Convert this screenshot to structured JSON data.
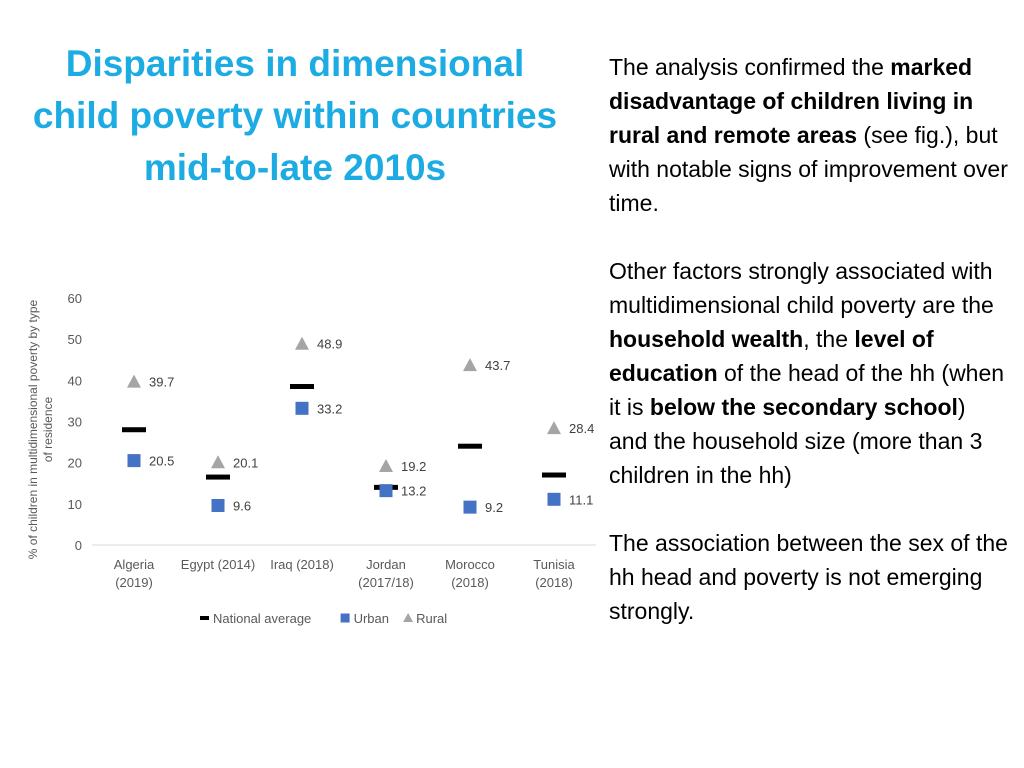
{
  "slide": {
    "title_lines": [
      "Disparities in dimensional",
      "child poverty within countries",
      "mid-to-late 2010s"
    ],
    "paragraph1": {
      "t1": "The analysis confirmed the ",
      "b1": "marked disadvantage of children living in rural and remote areas",
      "t2": " (see fig.), but with notable signs of improvement over time."
    },
    "paragraph2": {
      "t1": "Other factors strongly associated with multidimensional child poverty are the ",
      "b1": "household wealth",
      "t2": ", the ",
      "b2": "level of education",
      "t3": " of the head of the hh (when it is ",
      "b3": "below the secondary school",
      "t4": ") and the household size (more than 3 children in the hh)"
    },
    "paragraph3": {
      "t1": "The association between the sex of the hh head and poverty is not emerging strongly."
    }
  },
  "chart_data": {
    "type": "scatter",
    "ylabel": "% of children in multidimensional poverty by type of residence",
    "ylim": [
      0,
      60
    ],
    "yticks": [
      0,
      10,
      20,
      30,
      40,
      50,
      60
    ],
    "categories": [
      [
        "Algeria",
        "(2019)"
      ],
      [
        "Egypt (2014)"
      ],
      [
        "Iraq (2018)"
      ],
      [
        "Jordan",
        "(2017/18)"
      ],
      [
        "Morocco",
        "(2018)"
      ],
      [
        "Tunisia",
        "(2018)"
      ]
    ],
    "series": [
      {
        "name": "National average",
        "marker": "dash",
        "color": "#000000",
        "values": [
          28,
          16.5,
          38.5,
          14,
          24,
          17
        ],
        "labels": false
      },
      {
        "name": "Urban",
        "marker": "square",
        "color": "#4472c4",
        "values": [
          20.5,
          9.6,
          33.2,
          13.2,
          9.2,
          11.1
        ],
        "labels": true
      },
      {
        "name": "Rural",
        "marker": "triangle",
        "color": "#a5a5a5",
        "values": [
          39.7,
          20.1,
          48.9,
          19.2,
          43.7,
          28.4
        ],
        "labels": true
      }
    ],
    "legend_position": "bottom",
    "grid": false
  }
}
